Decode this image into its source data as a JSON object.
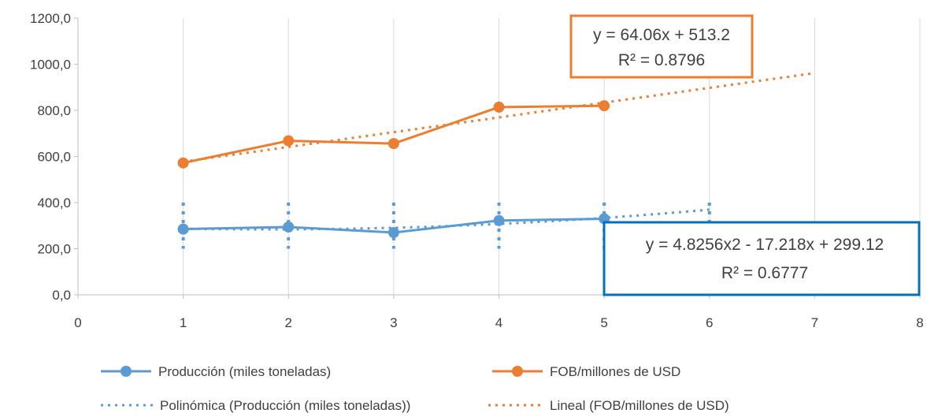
{
  "chart_data": {
    "type": "scatter",
    "x_axis": {
      "min": 0,
      "max": 8,
      "step": 1,
      "ticks": [
        "0",
        "1",
        "2",
        "3",
        "4",
        "5",
        "6",
        "7",
        "8"
      ]
    },
    "y_axis": {
      "min": 0,
      "max": 1200,
      "step": 200,
      "ticks": [
        "0,0",
        "200,0",
        "400,0",
        "600,0",
        "800,0",
        "1000,0",
        "1200,0"
      ]
    },
    "grid": "vertical",
    "series": [
      {
        "name": "Producción (miles toneladas)",
        "color": "#5B9BD5",
        "marker": "circle",
        "points": [
          {
            "x": 1,
            "y": 285
          },
          {
            "x": 2,
            "y": 294
          },
          {
            "x": 3,
            "y": 270
          },
          {
            "x": 4,
            "y": 322
          },
          {
            "x": 5,
            "y": 330
          }
        ]
      },
      {
        "name": "FOB/millones de USD",
        "color": "#ED7D31",
        "marker": "circle",
        "points": [
          {
            "x": 1,
            "y": 572
          },
          {
            "x": 2,
            "y": 668
          },
          {
            "x": 3,
            "y": 656
          },
          {
            "x": 4,
            "y": 814
          },
          {
            "x": 5,
            "y": 820
          }
        ]
      }
    ],
    "trendlines": [
      {
        "name": "Polinómica (Producción (miles toneladas))",
        "color": "#5B9BD5",
        "kind": "polynomial",
        "x_range": [
          1,
          6
        ],
        "equation": "y = 4.8256x2 - 17.218x + 299.12",
        "r2": "R² = 0.6777"
      },
      {
        "name": "Lineal (FOB/millones de USD)",
        "color": "#ED7D31",
        "kind": "linear",
        "x_range": [
          1,
          7
        ],
        "equation": "y = 64.06x + 513.2",
        "r2": "R² = 0.8796"
      }
    ],
    "legend_position": "bottom",
    "axis_color": "#BFBFBF",
    "grid_color": "#D9D9D9",
    "text_color": "#404040"
  }
}
